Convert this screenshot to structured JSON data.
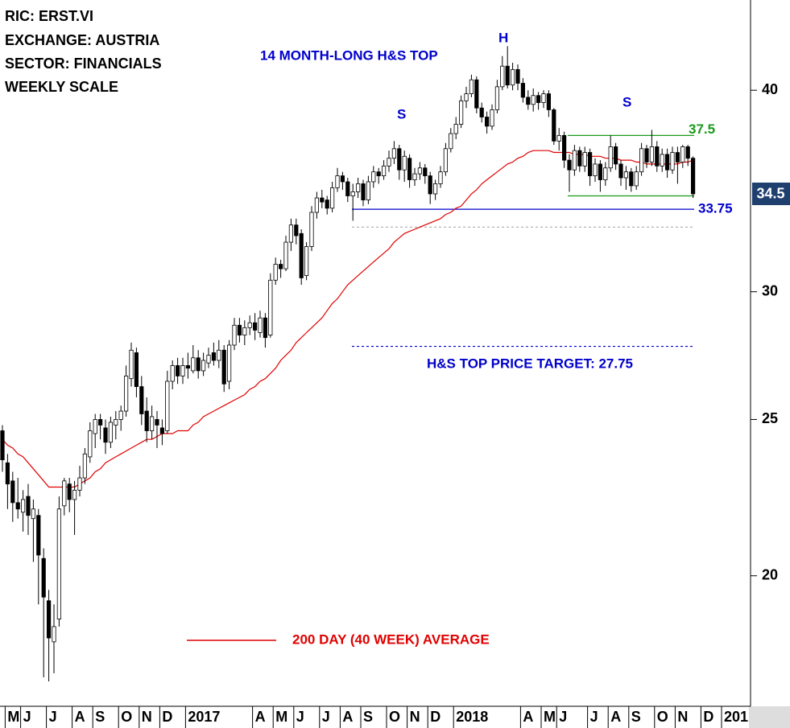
{
  "chart_data": {
    "type": "candlestick",
    "info": [
      "RIC: ERST.VI",
      "EXCHANGE: AUSTRIA",
      "SECTOR: FINANCIALS",
      "WEEKLY SCALE"
    ],
    "annotations": [
      "14 MONTH-LONG H&S TOP",
      "H",
      "S",
      "S",
      "H&S TOP PRICE TARGET: 27.75"
    ],
    "categories": [
      null,
      "M",
      null,
      null,
      "J",
      null,
      null,
      null,
      null,
      "J",
      null,
      null,
      null,
      null,
      "A",
      null,
      null,
      null,
      "S",
      null,
      null,
      null,
      null,
      "O",
      null,
      null,
      null,
      "N",
      null,
      null,
      null,
      "D",
      null,
      null,
      null,
      null,
      "2017",
      null,
      null,
      null,
      null,
      null,
      null,
      null,
      null,
      null,
      null,
      null,
      null,
      "A",
      null,
      null,
      null,
      "M",
      null,
      null,
      null,
      "J",
      null,
      null,
      null,
      null,
      "J",
      null,
      null,
      null,
      "A",
      null,
      null,
      null,
      "S",
      null,
      null,
      null,
      null,
      "O",
      null,
      null,
      null,
      "N",
      null,
      null,
      null,
      "D",
      null,
      null,
      null,
      null,
      "2018",
      null,
      null,
      null,
      null,
      null,
      null,
      null,
      null,
      null,
      null,
      null,
      null,
      "A",
      null,
      null,
      null,
      "M",
      null,
      null,
      "J",
      null,
      null,
      null,
      null,
      null,
      "J",
      null,
      null,
      null,
      "A",
      null,
      null,
      null,
      "S",
      null,
      null,
      null,
      null,
      "O",
      null,
      null,
      null,
      "N",
      null,
      null,
      null,
      null,
      "D",
      null,
      null,
      null,
      "201"
    ],
    "ohlc": [
      [
        24.6,
        24.8,
        23.2,
        23.6
      ],
      [
        23.5,
        23.8,
        22.0,
        22.8
      ],
      [
        22.9,
        23.2,
        21.6,
        22.2
      ],
      [
        22.2,
        23.0,
        21.7,
        22.0
      ],
      [
        21.9,
        22.6,
        21.3,
        22.3
      ],
      [
        22.4,
        22.8,
        21.2,
        21.8
      ],
      [
        21.7,
        22.3,
        20.4,
        22.0
      ],
      [
        21.8,
        22.0,
        19.2,
        20.6
      ],
      [
        20.5,
        20.8,
        17.3,
        19.4
      ],
      [
        19.3,
        19.6,
        17.2,
        18.3
      ],
      [
        18.2,
        19.2,
        17.4,
        18.6
      ],
      [
        18.8,
        22.4,
        18.6,
        22.0
      ],
      [
        22.1,
        23.0,
        21.8,
        22.9
      ],
      [
        22.8,
        23.0,
        21.9,
        22.3
      ],
      [
        22.3,
        22.9,
        21.2,
        22.6
      ],
      [
        22.6,
        23.4,
        22.4,
        23.0
      ],
      [
        23.0,
        24.0,
        22.8,
        23.8
      ],
      [
        23.7,
        24.9,
        23.5,
        24.6
      ],
      [
        24.5,
        25.2,
        24.0,
        25.0
      ],
      [
        25.0,
        25.2,
        24.3,
        24.8
      ],
      [
        24.7,
        25.0,
        23.8,
        24.2
      ],
      [
        24.2,
        25.1,
        24.0,
        24.9
      ],
      [
        24.8,
        25.3,
        24.3,
        25.0
      ],
      [
        25.0,
        25.5,
        24.6,
        25.3
      ],
      [
        25.3,
        27.0,
        25.1,
        26.6
      ],
      [
        26.5,
        27.9,
        26.2,
        27.6
      ],
      [
        27.5,
        27.7,
        25.8,
        26.2
      ],
      [
        26.2,
        26.6,
        24.8,
        25.2
      ],
      [
        25.3,
        25.8,
        24.2,
        24.6
      ],
      [
        24.6,
        25.5,
        24.3,
        25.1
      ],
      [
        25.0,
        25.3,
        24.0,
        24.8
      ],
      [
        24.7,
        25.0,
        24.1,
        24.5
      ],
      [
        24.6,
        26.8,
        24.5,
        26.4
      ],
      [
        26.4,
        27.2,
        26.1,
        27.0
      ],
      [
        27.0,
        27.3,
        26.3,
        26.6
      ],
      [
        26.6,
        27.3,
        26.3,
        27.0
      ],
      [
        27.0,
        27.5,
        26.5,
        26.9
      ],
      [
        26.8,
        27.8,
        26.7,
        27.3
      ],
      [
        27.3,
        27.6,
        26.5,
        26.8
      ],
      [
        26.8,
        27.5,
        26.6,
        27.2
      ],
      [
        27.1,
        27.7,
        26.9,
        27.4
      ],
      [
        27.5,
        27.9,
        27.0,
        27.2
      ],
      [
        27.2,
        28.0,
        26.9,
        27.6
      ],
      [
        27.6,
        27.8,
        26.0,
        26.3
      ],
      [
        26.4,
        28.0,
        26.1,
        27.8
      ],
      [
        27.8,
        28.9,
        27.6,
        28.6
      ],
      [
        28.6,
        28.9,
        27.9,
        28.2
      ],
      [
        28.2,
        28.8,
        27.8,
        28.5
      ],
      [
        28.5,
        29.0,
        28.2,
        28.7
      ],
      [
        28.7,
        29.1,
        28.0,
        28.4
      ],
      [
        28.3,
        29.2,
        28.1,
        28.9
      ],
      [
        28.9,
        29.1,
        27.7,
        28.1
      ],
      [
        28.2,
        30.8,
        28.1,
        30.5
      ],
      [
        30.5,
        31.5,
        30.3,
        31.2
      ],
      [
        31.2,
        31.4,
        30.6,
        31.0
      ],
      [
        31.0,
        32.5,
        30.9,
        32.2
      ],
      [
        32.2,
        33.3,
        31.8,
        33.0
      ],
      [
        33.0,
        33.3,
        32.1,
        32.5
      ],
      [
        32.6,
        32.8,
        30.3,
        30.6
      ],
      [
        30.7,
        32.2,
        30.5,
        32.0
      ],
      [
        32.0,
        33.9,
        31.8,
        33.6
      ],
      [
        33.6,
        34.6,
        33.3,
        34.3
      ],
      [
        34.3,
        34.7,
        33.8,
        34.1
      ],
      [
        34.2,
        34.4,
        33.5,
        33.8
      ],
      [
        33.8,
        35.1,
        33.6,
        34.8
      ],
      [
        34.8,
        35.8,
        34.6,
        35.4
      ],
      [
        35.4,
        35.6,
        34.7,
        35.1
      ],
      [
        35.1,
        35.3,
        34.1,
        34.4
      ],
      [
        34.4,
        35.0,
        33.2,
        34.6
      ],
      [
        34.6,
        35.3,
        34.3,
        35.0
      ],
      [
        35.0,
        35.2,
        33.9,
        34.2
      ],
      [
        34.2,
        35.4,
        34.0,
        35.1
      ],
      [
        35.1,
        35.9,
        34.8,
        35.6
      ],
      [
        35.6,
        35.8,
        35.0,
        35.4
      ],
      [
        35.4,
        36.2,
        35.2,
        35.9
      ],
      [
        35.9,
        36.7,
        35.6,
        36.3
      ],
      [
        36.3,
        37.2,
        36.0,
        36.8
      ],
      [
        36.8,
        37.0,
        35.2,
        35.7
      ],
      [
        35.7,
        36.7,
        35.1,
        36.4
      ],
      [
        36.3,
        36.5,
        34.8,
        35.2
      ],
      [
        35.2,
        35.8,
        34.9,
        35.5
      ],
      [
        35.5,
        36.1,
        35.2,
        35.8
      ],
      [
        35.8,
        36.0,
        35.0,
        35.4
      ],
      [
        35.4,
        35.6,
        34.0,
        34.5
      ],
      [
        34.5,
        35.2,
        34.2,
        35.0
      ],
      [
        35.0,
        35.9,
        34.8,
        35.6
      ],
      [
        35.6,
        37.1,
        35.4,
        36.8
      ],
      [
        36.8,
        37.9,
        36.6,
        37.6
      ],
      [
        37.6,
        38.5,
        37.3,
        38.1
      ],
      [
        38.1,
        39.7,
        37.9,
        39.4
      ],
      [
        39.4,
        40.2,
        39.0,
        39.8
      ],
      [
        39.8,
        40.9,
        39.6,
        40.6
      ],
      [
        40.6,
        40.8,
        38.7,
        39.0
      ],
      [
        39.0,
        39.3,
        38.2,
        38.5
      ],
      [
        38.5,
        38.8,
        37.6,
        38.0
      ],
      [
        38.0,
        39.2,
        37.8,
        38.9
      ],
      [
        38.9,
        40.6,
        38.7,
        40.2
      ],
      [
        40.2,
        42.0,
        40.0,
        41.4
      ],
      [
        41.4,
        42.6,
        40.1,
        40.3
      ],
      [
        40.3,
        41.6,
        40.0,
        41.2
      ],
      [
        41.2,
        41.5,
        40.0,
        40.4
      ],
      [
        40.4,
        40.7,
        39.3,
        39.6
      ],
      [
        39.6,
        40.0,
        38.9,
        39.2
      ],
      [
        39.2,
        40.1,
        38.8,
        39.7
      ],
      [
        39.7,
        39.9,
        38.9,
        39.3
      ],
      [
        39.3,
        40.0,
        39.0,
        39.8
      ],
      [
        39.8,
        40.0,
        38.5,
        38.9
      ],
      [
        38.9,
        39.0,
        37.0,
        37.2
      ],
      [
        37.2,
        37.9,
        36.7,
        37.5
      ],
      [
        37.5,
        37.7,
        35.8,
        36.2
      ],
      [
        36.2,
        36.5,
        34.6,
        35.7
      ],
      [
        35.7,
        37.0,
        35.4,
        36.7
      ],
      [
        36.7,
        36.9,
        35.6,
        35.9
      ],
      [
        35.9,
        36.9,
        35.6,
        36.6
      ],
      [
        36.6,
        36.8,
        34.9,
        35.4
      ],
      [
        35.4,
        36.3,
        35.1,
        36.0
      ],
      [
        36.0,
        36.2,
        34.6,
        35.2
      ],
      [
        35.2,
        36.1,
        34.9,
        35.8
      ],
      [
        35.8,
        37.5,
        35.6,
        36.9
      ],
      [
        36.9,
        37.1,
        35.7,
        36.0
      ],
      [
        36.0,
        36.2,
        34.9,
        35.3
      ],
      [
        35.3,
        35.9,
        34.7,
        35.6
      ],
      [
        35.6,
        35.8,
        34.6,
        34.9
      ],
      [
        34.9,
        35.9,
        34.7,
        35.6
      ],
      [
        35.6,
        37.1,
        35.4,
        36.8
      ],
      [
        36.8,
        37.0,
        35.8,
        36.1
      ],
      [
        36.1,
        37.8,
        35.9,
        36.9
      ],
      [
        36.9,
        37.2,
        35.6,
        35.9
      ],
      [
        35.9,
        36.8,
        35.6,
        36.5
      ],
      [
        36.5,
        36.8,
        35.3,
        35.7
      ],
      [
        35.7,
        36.9,
        35.5,
        36.6
      ],
      [
        36.6,
        36.9,
        35.0,
        36.1
      ],
      [
        36.1,
        37.0,
        35.8,
        36.9
      ],
      [
        36.9,
        37.0,
        35.9,
        36.3
      ],
      [
        36.3,
        36.4,
        34.3,
        34.5
      ],
      null,
      null,
      null,
      null,
      null,
      null
    ],
    "up_color": "#ffffff",
    "down_color": "#000000",
    "ma": {
      "name": "200 DAY (40 WEEK) AVERAGE",
      "color": "#e00000",
      "values": [
        24.3,
        24.1,
        24.0,
        23.8,
        23.7,
        23.5,
        23.3,
        23.1,
        22.9,
        22.7,
        22.7,
        22.7,
        22.7,
        22.7,
        22.7,
        22.8,
        22.9,
        23.0,
        23.2,
        23.3,
        23.5,
        23.6,
        23.7,
        23.8,
        23.9,
        24.0,
        24.1,
        24.2,
        24.3,
        24.3,
        24.4,
        24.5,
        24.5,
        24.5,
        24.6,
        24.6,
        24.6,
        24.8,
        24.9,
        25.1,
        25.2,
        25.3,
        25.4,
        25.5,
        25.6,
        25.7,
        25.8,
        25.9,
        26.1,
        26.2,
        26.4,
        26.5,
        26.7,
        26.9,
        27.2,
        27.4,
        27.6,
        27.9,
        28.1,
        28.3,
        28.5,
        28.7,
        28.9,
        29.2,
        29.5,
        29.7,
        30.0,
        30.3,
        30.5,
        30.7,
        30.9,
        31.1,
        31.3,
        31.5,
        31.7,
        31.9,
        32.2,
        32.4,
        32.6,
        32.7,
        32.8,
        32.9,
        33.0,
        33.1,
        33.2,
        33.3,
        33.5,
        33.6,
        33.8,
        33.9,
        34.2,
        34.5,
        34.7,
        35.0,
        35.2,
        35.4,
        35.6,
        35.8,
        36.0,
        36.1,
        36.3,
        36.4,
        36.6,
        36.7,
        36.7,
        36.7,
        36.7,
        36.6,
        36.6,
        36.6,
        36.6,
        36.5,
        36.5,
        36.5,
        36.4,
        36.4,
        36.4,
        36.3,
        36.3,
        36.3,
        36.2,
        36.2,
        36.2,
        36.1,
        36.1,
        36.0,
        36.0,
        36.0,
        36.0,
        36.0,
        36.0,
        36.0,
        36.1,
        36.1,
        36.2,
        null,
        null,
        null,
        null,
        null,
        null
      ]
    },
    "levels": [
      {
        "value": 37.5,
        "color": "#1a9a1a",
        "labeled": true
      },
      {
        "value": 34.4,
        "color": "#1a9a1a",
        "labeled": false
      },
      {
        "value": 33.75,
        "color": "#0000cc",
        "labeled": true
      },
      {
        "value": 32.9,
        "color": "#aaaaaa",
        "labeled": false,
        "dotted": true
      },
      {
        "value": 27.75,
        "color": "#0000cc",
        "labeled": false,
        "dotted": true
      }
    ],
    "log": true,
    "ylim": [
      16.6,
      45.5
    ],
    "yticks": [
      20,
      25,
      30,
      40
    ],
    "price_box_color": "#1f3f6f"
  }
}
